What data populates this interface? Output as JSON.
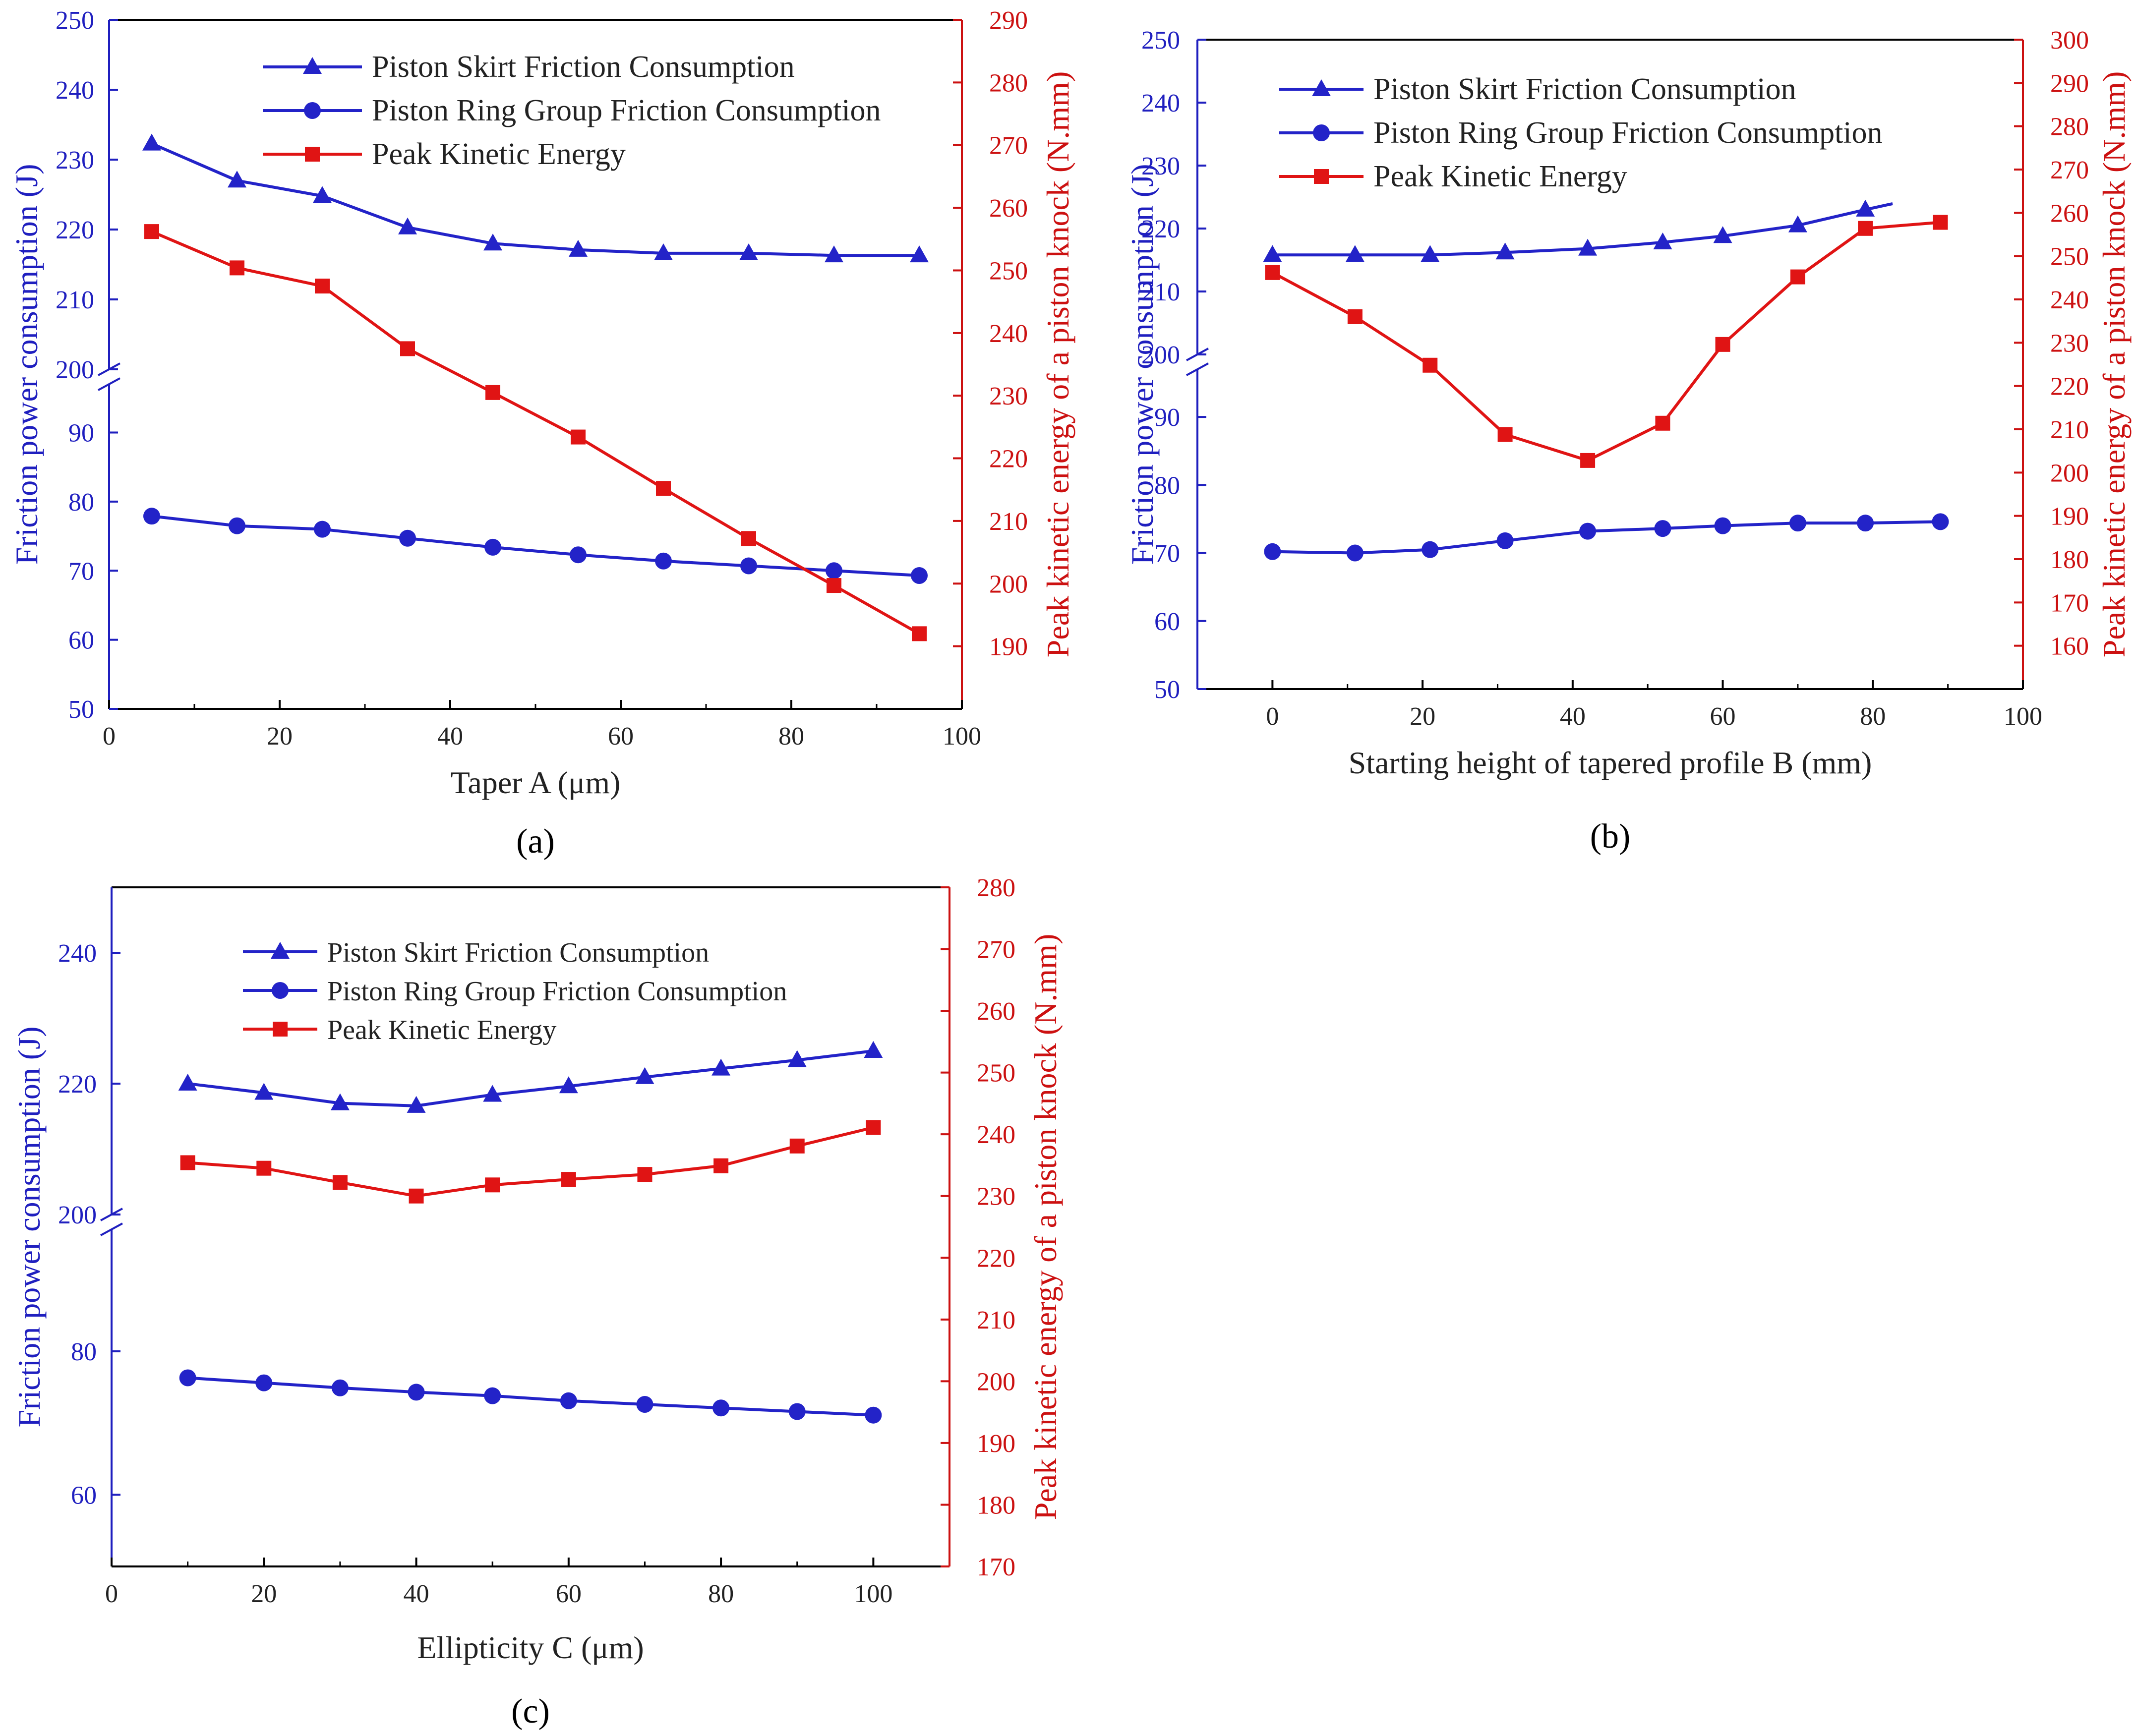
{
  "colors": {
    "left_axis": "#1f1fbf",
    "right_axis": "#cc1111",
    "skirt": "#2323c8",
    "ring": "#2323c8",
    "kinetic": "#e01414"
  },
  "chart_data": [
    {
      "panel": "a",
      "panel_label": "(a)",
      "type": "line",
      "xlabel": "Taper A (μm)",
      "ylabel_left": "Friction power consumption (J)",
      "ylabel_right": "Peak kinetic energy of a piston knock (N.mm)",
      "xlim": [
        0,
        100
      ],
      "xticks": [
        0,
        20,
        40,
        60,
        80,
        100
      ],
      "ylim_left_upper": [
        200,
        250
      ],
      "yticks_left_upper": [
        200,
        210,
        220,
        230,
        240,
        250
      ],
      "ylim_left_lower": [
        50,
        97
      ],
      "yticks_left_lower": [
        50,
        60,
        70,
        80,
        90
      ],
      "ylim_right": [
        180,
        290
      ],
      "yticks_right": [
        190,
        200,
        210,
        220,
        230,
        240,
        250,
        260,
        270,
        280,
        290
      ],
      "legend": [
        "Piston Skirt Friction Consumption",
        "Piston Ring Group Friction Consumption",
        "Peak Kinetic Energy"
      ],
      "x": [
        5,
        15,
        25,
        35,
        45,
        55,
        65,
        75,
        85,
        95
      ],
      "series": [
        {
          "name": "Piston Skirt Friction Consumption",
          "axis": "left",
          "marker": "triangle",
          "values": [
            232.3,
            227.0,
            224.8,
            220.3,
            218.0,
            217.1,
            216.6,
            216.6,
            216.3,
            216.3
          ]
        },
        {
          "name": "Piston Ring Group Friction Consumption",
          "axis": "left",
          "marker": "circle",
          "values": [
            77.9,
            76.5,
            76.0,
            74.7,
            73.4,
            72.3,
            71.4,
            70.7,
            70.0,
            69.3
          ]
        },
        {
          "name": "Peak Kinetic Energy",
          "axis": "right",
          "marker": "square",
          "values": [
            256.2,
            250.4,
            247.5,
            237.5,
            230.5,
            223.4,
            215.2,
            207.2,
            199.7,
            192.0
          ]
        }
      ]
    },
    {
      "panel": "b",
      "panel_label": "(b)",
      "type": "line",
      "xlabel": "Starting height of tapered profile B (mm)",
      "ylabel_left": "Friction power consumption (J)",
      "ylabel_right": "Peak kinetic energy of a piston knock (N.mm)",
      "xlim": [
        -10,
        100
      ],
      "xticks": [
        0,
        20,
        40,
        60,
        80,
        100
      ],
      "ylim_left_upper": [
        200,
        250
      ],
      "yticks_left_upper": [
        200,
        210,
        220,
        230,
        240,
        250
      ],
      "ylim_left_lower": [
        50,
        97
      ],
      "yticks_left_lower": [
        50,
        60,
        70,
        80,
        90
      ],
      "ylim_right": [
        150,
        300
      ],
      "yticks_right": [
        160,
        170,
        180,
        190,
        200,
        210,
        220,
        230,
        240,
        250,
        260,
        270,
        280,
        290,
        300
      ],
      "legend": [
        "Piston Skirt Friction Consumption",
        "Piston Ring Group Friction Consumption",
        "Peak Kinetic Energy"
      ],
      "x": [
        0,
        11,
        21,
        31,
        42,
        52,
        60,
        70,
        79,
        89
      ],
      "series": [
        {
          "name": "Piston Skirt Friction Consumption",
          "axis": "left",
          "marker": "triangle",
          "values": [
            215.8,
            215.8,
            215.8,
            216.2,
            216.8,
            217.8,
            218.8,
            220.5,
            223.0,
            null
          ]
        },
        {
          "name": "Piston Ring Group Friction Consumption",
          "axis": "left",
          "marker": "circle",
          "values": [
            70.2,
            70.0,
            70.5,
            71.8,
            73.2,
            73.6,
            74.0,
            74.4,
            74.4,
            74.6
          ]
        },
        {
          "name": "Peak Kinetic Energy",
          "axis": "right",
          "marker": "square",
          "values": [
            246.2,
            236.0,
            224.8,
            208.8,
            202.8,
            211.4,
            229.6,
            245.2,
            256.4,
            257.8
          ]
        }
      ]
    },
    {
      "panel": "c",
      "panel_label": "(c)",
      "type": "line",
      "xlabel": "Ellipticity C (μm)",
      "ylabel_left": "Friction power consumption (J)",
      "ylabel_right": "Peak kinetic energy of a piston knock (N.mm)",
      "xlim": [
        0,
        110
      ],
      "xticks": [
        0,
        20,
        40,
        60,
        80,
        100
      ],
      "ylim_left_upper": [
        200,
        250
      ],
      "yticks_left_upper": [
        200,
        220,
        240
      ],
      "ylim_left_lower": [
        50,
        97
      ],
      "yticks_left_lower": [
        60,
        80
      ],
      "ylim_right": [
        170,
        280
      ],
      "yticks_right": [
        170,
        180,
        190,
        200,
        210,
        220,
        230,
        240,
        250,
        260,
        270,
        280
      ],
      "legend": [
        "Piston Skirt Friction Consumption",
        "Piston Ring Group Friction Consumption",
        "Peak Kinetic Energy"
      ],
      "x": [
        10,
        20,
        30,
        40,
        50,
        60,
        70,
        80,
        90,
        100
      ],
      "series": [
        {
          "name": "Piston Skirt Friction Consumption",
          "axis": "left",
          "marker": "triangle",
          "values": [
            220.0,
            218.6,
            217.0,
            216.6,
            218.3,
            219.6,
            221.0,
            222.3,
            223.6,
            225.0
          ]
        },
        {
          "name": "Piston Ring Group Friction Consumption",
          "axis": "left",
          "marker": "circle",
          "values": [
            76.3,
            75.6,
            74.9,
            74.3,
            73.8,
            73.1,
            72.6,
            72.1,
            71.6,
            71.1
          ]
        },
        {
          "name": "Peak Kinetic Energy",
          "axis": "right",
          "marker": "square",
          "values": [
            235.4,
            234.5,
            232.2,
            230.0,
            231.8,
            232.7,
            233.5,
            234.9,
            238.1,
            241.1
          ]
        }
      ]
    }
  ]
}
